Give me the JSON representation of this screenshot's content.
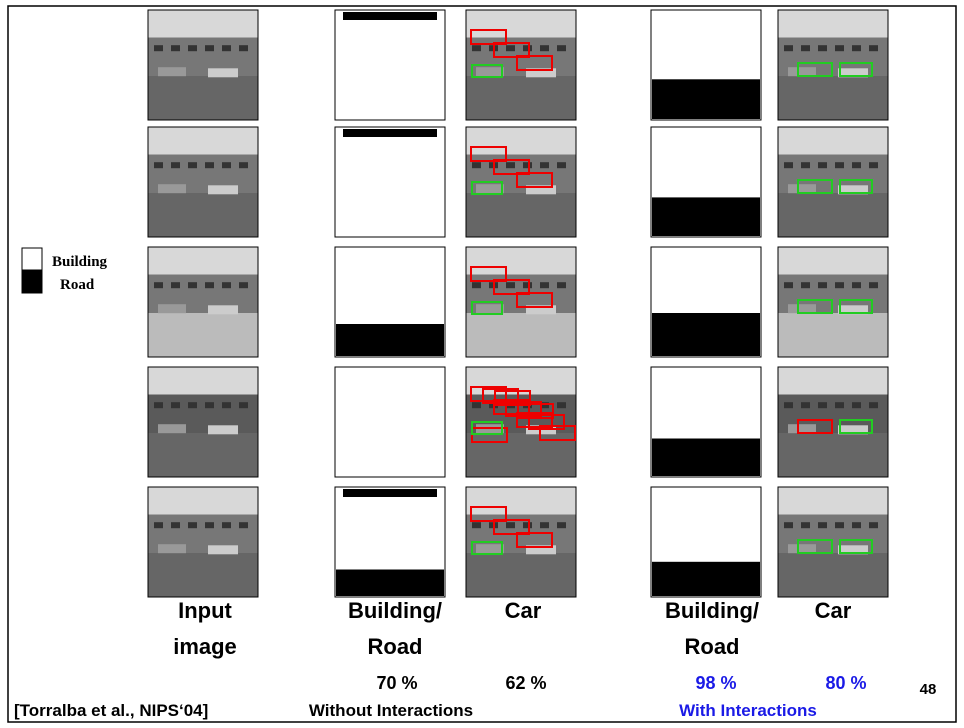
{
  "legend": [
    "Building",
    "Road"
  ],
  "column_labels": [
    [
      "Input",
      "image"
    ],
    [
      "Building/",
      "Road"
    ],
    [
      "Car"
    ],
    [
      "Building/",
      "Road"
    ],
    [
      "Car"
    ]
  ],
  "scores": [
    "70 %",
    "62 %",
    "98 %",
    "80 %"
  ],
  "groups": [
    "Without Interactions",
    "With Interactions"
  ],
  "citation": "[Torralba et al., NIPS‘04]",
  "page_number": "48"
}
